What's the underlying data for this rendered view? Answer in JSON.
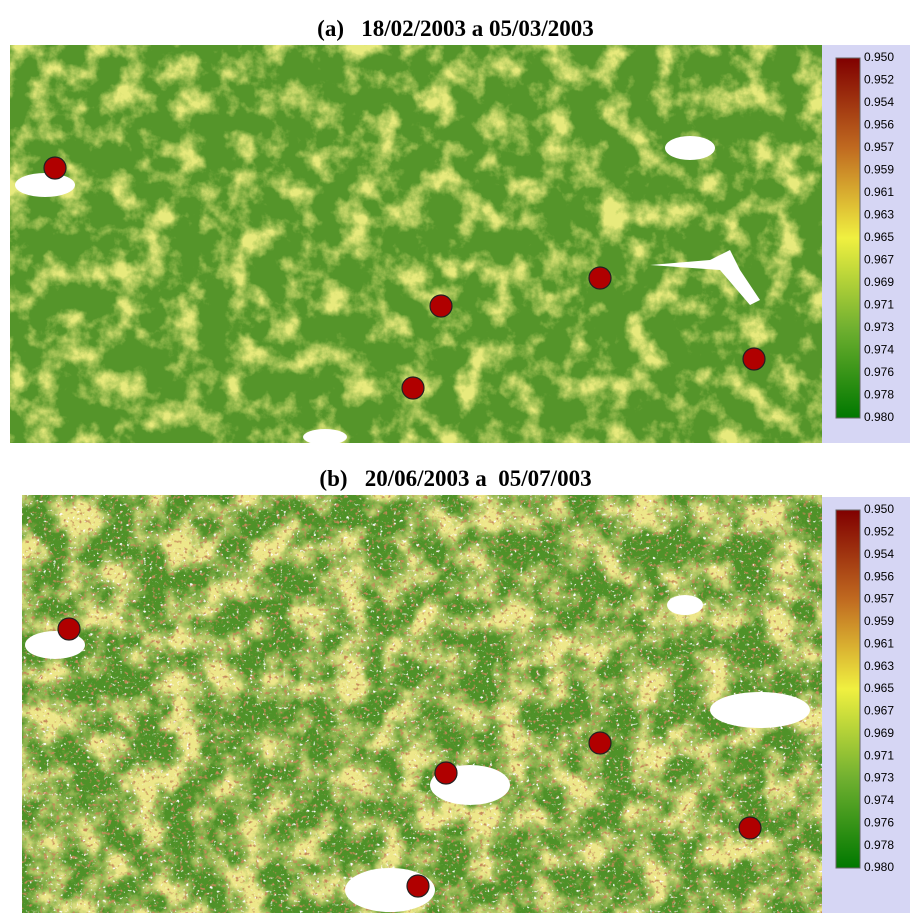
{
  "panels": [
    {
      "title": "(a)   18/02/2003 a 05/03/2003",
      "legend_labels": [
        "0.950",
        "0.952",
        "0.954",
        "0.956",
        "0.957",
        "0.959",
        "0.961",
        "0.963",
        "0.965",
        "0.967",
        "0.969",
        "0.971",
        "0.973",
        "0.974",
        "0.976",
        "0.978",
        "0.980"
      ]
    },
    {
      "title": "(b)   20/06/2003 a  05/07/003",
      "legend_labels": [
        "0.950",
        "0.952",
        "0.954",
        "0.956",
        "0.957",
        "0.959",
        "0.961",
        "0.963",
        "0.965",
        "0.967",
        "0.969",
        "0.971",
        "0.973",
        "0.974",
        "0.976",
        "0.978",
        "0.980"
      ]
    }
  ]
}
